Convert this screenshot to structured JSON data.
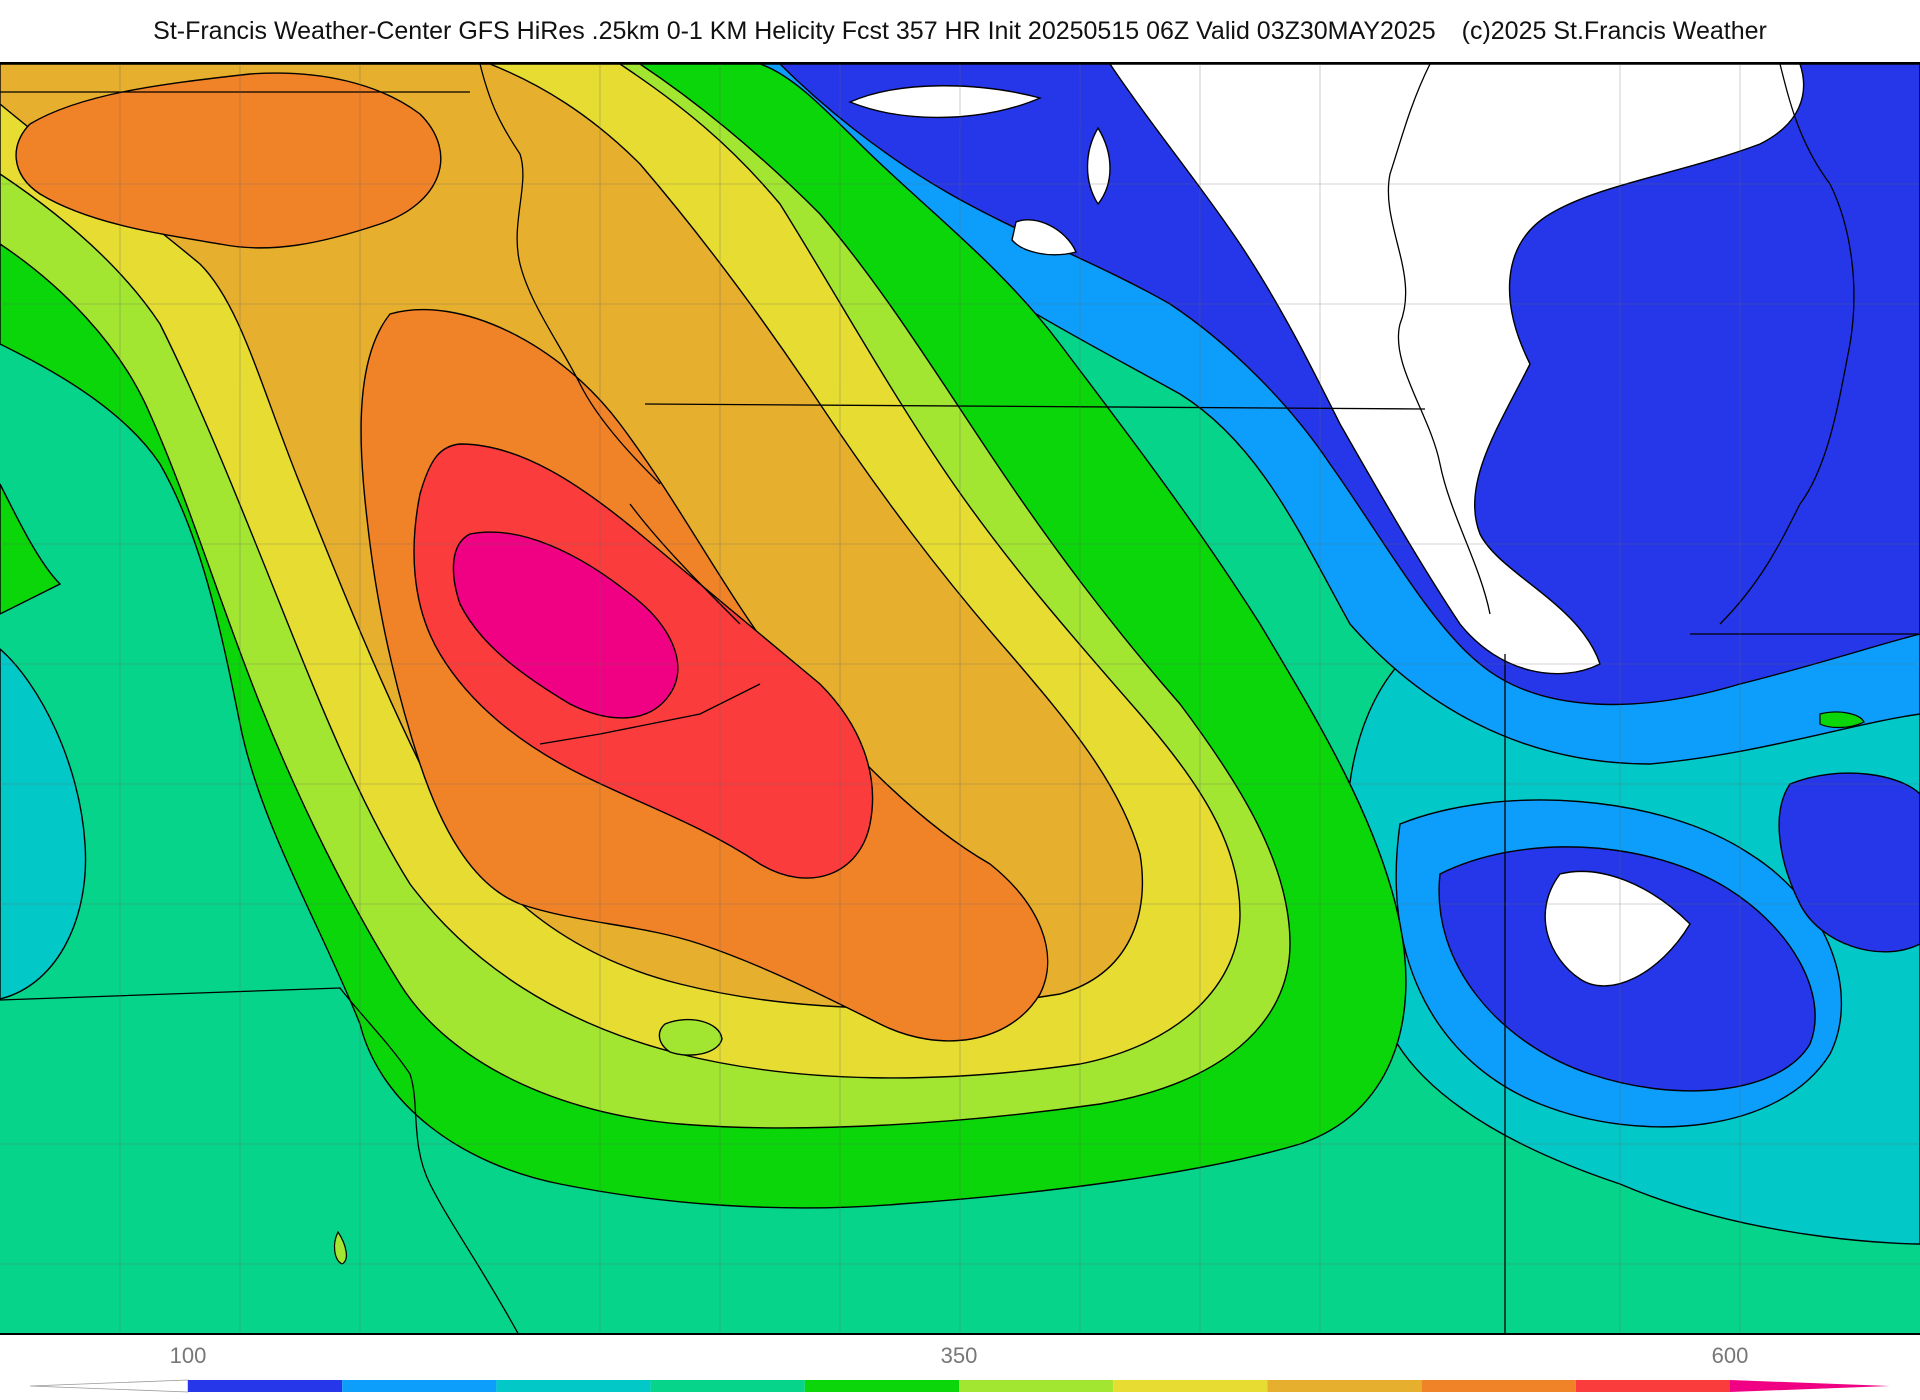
{
  "header": {
    "title": "St-Francis Weather-Center GFS HiRes .25km 0-1 KM Helicity Fcst 357 HR Init 20250515 06Z  Valid 03Z30MAY2025",
    "copyright": "(c)2025 St.Francis Weather"
  },
  "legend": {
    "ticks": [
      {
        "label": "100",
        "value": 100
      },
      {
        "label": "350",
        "value": 350
      },
      {
        "label": "600",
        "value": 600
      }
    ],
    "bins": [
      {
        "from": 100,
        "to": 150,
        "color": "#2537e8"
      },
      {
        "from": 150,
        "to": 200,
        "color": "#0d9dfa"
      },
      {
        "from": 200,
        "to": 250,
        "color": "#02c8c8"
      },
      {
        "from": 250,
        "to": 300,
        "color": "#06d48a"
      },
      {
        "from": 300,
        "to": 350,
        "color": "#0ad60a"
      },
      {
        "from": 350,
        "to": 400,
        "color": "#a3e632"
      },
      {
        "from": 400,
        "to": 450,
        "color": "#e6dc32"
      },
      {
        "from": 450,
        "to": 500,
        "color": "#e6af2d"
      },
      {
        "from": 500,
        "to": 550,
        "color": "#f08228"
      },
      {
        "from": 550,
        "to": 600,
        "color": "#fa3c3c"
      },
      {
        "from": 600,
        "to": 650,
        "color": "#f00082"
      }
    ],
    "below_color": "#ffffff",
    "above_color": "#f00082"
  },
  "map": {
    "background_color": "#ffffff",
    "field": "0-1 KM Helicity"
  }
}
